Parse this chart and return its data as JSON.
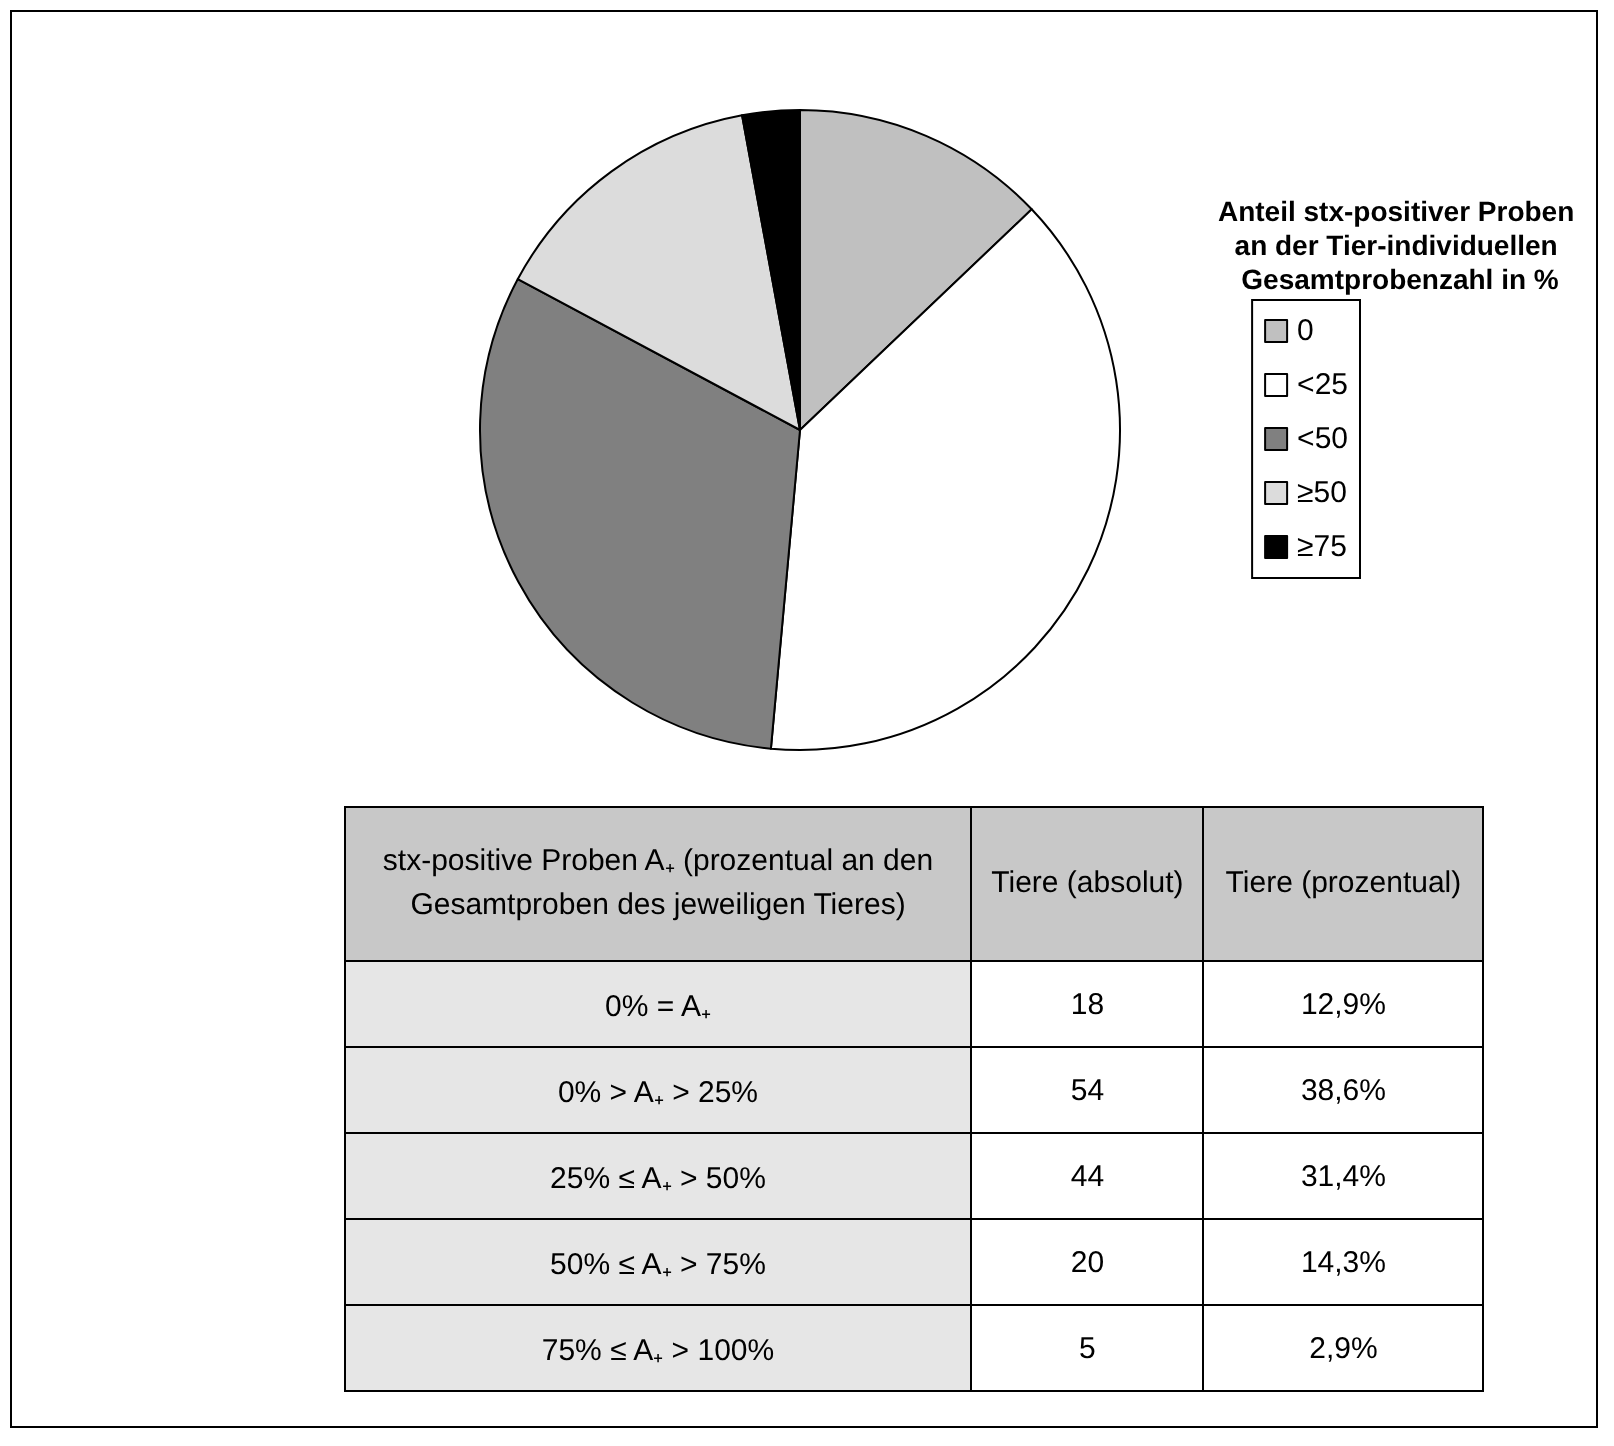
{
  "chart_data": {
    "type": "pie",
    "legend_title": "Anteil stx-positiver Proben an der Tier-individuellen Gesamtprobenzahl in %",
    "categories": [
      "0",
      "<25",
      "<50",
      "≥50",
      "≥75"
    ],
    "values": [
      12.9,
      38.6,
      31.4,
      14.3,
      2.9
    ],
    "colors": [
      "#c0c0c0",
      "#ffffff",
      "#808080",
      "#dcdcdc",
      "#000000"
    ],
    "legend": "right",
    "annotations": [
      "stx-positive Proben A₊ (prozentual an den Gesamtproben des jeweiligen Tieres)",
      "Tiere (absolut)",
      "Tiere (prozentual)",
      "0% = A₊",
      "18",
      "12,9%",
      "0% > A₊ > 25%",
      "54",
      "38,6%",
      "25% ≤ A₊ >  50%",
      "44",
      "31,4%",
      "50% ≤ A₊ > 75%",
      "20",
      "14,3%",
      "75% ≤ A₊ > 100%",
      "5",
      "2,9%"
    ]
  }
}
